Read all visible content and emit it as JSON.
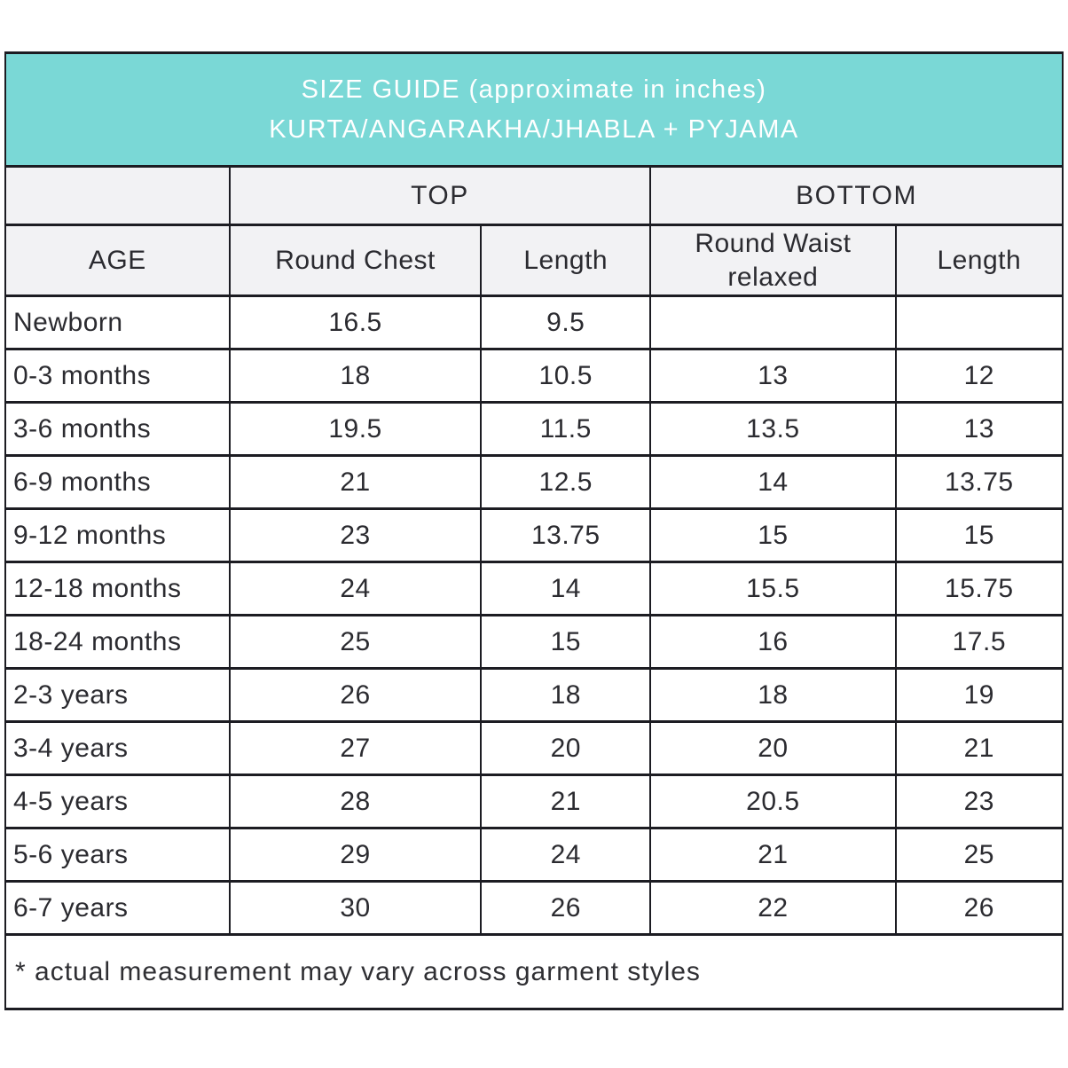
{
  "colors": {
    "banner_teal": "#7ad8d6",
    "header_gray": "#f2f2f4",
    "border": "#1c1c22",
    "banner_text": "#ffffff",
    "body_text": "#2b2b30"
  },
  "chart_data": {
    "type": "table",
    "title": "SIZE GUIDE (approximate in inches)",
    "subtitle": "KURTA/ANGARAKHA/JHABLA + PYJAMA",
    "group_headers": {
      "empty": "",
      "top": "TOP",
      "bottom": "BOTTOM"
    },
    "columns": [
      "AGE",
      "Round Chest",
      "Length",
      "Round Waist relaxed",
      "Length"
    ],
    "rows": [
      {
        "age": "Newborn",
        "values": [
          "16.5",
          "9.5",
          "",
          ""
        ]
      },
      {
        "age": "0-3 months",
        "values": [
          "18",
          "10.5",
          "13",
          "12"
        ]
      },
      {
        "age": "3-6 months",
        "values": [
          "19.5",
          "11.5",
          "13.5",
          "13"
        ]
      },
      {
        "age": "6-9 months",
        "values": [
          "21",
          "12.5",
          "14",
          "13.75"
        ]
      },
      {
        "age": "9-12 months",
        "values": [
          "23",
          "13.75",
          "15",
          "15"
        ]
      },
      {
        "age": "12-18 months",
        "values": [
          "24",
          "14",
          "15.5",
          "15.75"
        ]
      },
      {
        "age": "18-24 months",
        "values": [
          "25",
          "15",
          "16",
          "17.5"
        ]
      },
      {
        "age": "2-3 years",
        "values": [
          "26",
          "18",
          "18",
          "19"
        ]
      },
      {
        "age": "3-4 years",
        "values": [
          "27",
          "20",
          "20",
          "21"
        ]
      },
      {
        "age": "4-5 years",
        "values": [
          "28",
          "21",
          "20.5",
          "23"
        ]
      },
      {
        "age": "5-6 years",
        "values": [
          "29",
          "24",
          "21",
          "25"
        ]
      },
      {
        "age": "6-7 years",
        "values": [
          "30",
          "26",
          "22",
          "26"
        ]
      }
    ],
    "footnote": "* actual measurement may vary across garment styles"
  }
}
